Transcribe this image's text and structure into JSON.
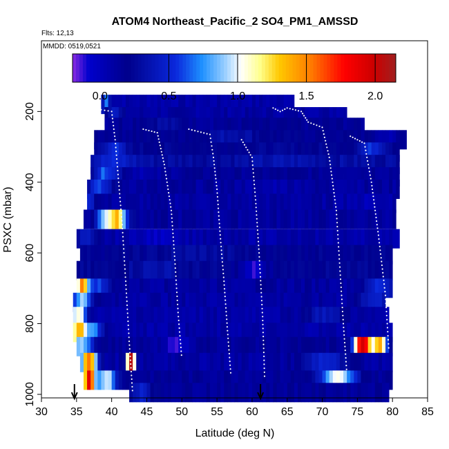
{
  "chart_data": {
    "type": "heatmap",
    "title": "ATOM4 Northeast_Pacific_2 SO4_PM1_AMSSD",
    "note_flights": "Flts: 12,13",
    "note_dates": "MMDD: 0519,0521",
    "xlabel": "Latitude (deg N)",
    "ylabel": "PSXC (mbar)",
    "xlim": [
      30,
      85
    ],
    "ylim": [
      1010,
      0
    ],
    "x_ticks": [
      "30",
      "35",
      "40",
      "45",
      "50",
      "55",
      "60",
      "65",
      "70",
      "75",
      "80",
      "85"
    ],
    "y_ticks": [
      "200",
      "400",
      "600",
      "800",
      "1000"
    ],
    "colorbar": {
      "range": [
        -0.2,
        2.15
      ],
      "tick_values": [
        0.0,
        0.5,
        1.0,
        1.5,
        2.0
      ],
      "tick_labels": [
        "0.0",
        "0.5",
        "1.0",
        "1.5",
        "2.0"
      ]
    },
    "arrows_at_latitude": [
      34.7,
      61.2
    ],
    "rows": [
      {
        "pressure": 180,
        "lat_start": 38.5,
        "lat_end": 66.0,
        "base": 0.08,
        "hot": [
          {
            "lat": 39.0,
            "value": 0.7,
            "width": 0.6
          }
        ]
      },
      {
        "pressure": 215,
        "lat_start": 39.0,
        "lat_end": 73.5,
        "base": 0.1,
        "hot": [
          {
            "lat": 40.0,
            "value": 0.45,
            "width": 1.2
          }
        ]
      },
      {
        "pressure": 245,
        "lat_start": 39.0,
        "lat_end": 76.0,
        "base": 0.15,
        "hot": [
          {
            "lat": 47.0,
            "value": 0.3,
            "width": 3
          }
        ]
      },
      {
        "pressure": 280,
        "lat_start": 37.5,
        "lat_end": 82.0,
        "base": 0.18,
        "hot": [
          {
            "lat": 57.0,
            "value": 0.35,
            "width": 4
          },
          {
            "lat": 79.0,
            "value": 0.05,
            "width": 2
          }
        ]
      },
      {
        "pressure": 315,
        "lat_start": 37.5,
        "lat_end": 81.0,
        "base": 0.22,
        "hot": [
          {
            "lat": 40.0,
            "value": 0.55,
            "width": 1.5
          },
          {
            "lat": 77.0,
            "value": 0.55,
            "width": 2
          }
        ]
      },
      {
        "pressure": 350,
        "lat_start": 37.0,
        "lat_end": 81.0,
        "base": 0.3,
        "hot": [
          {
            "lat": 40.0,
            "value": 0.5,
            "width": 3
          },
          {
            "lat": 65.0,
            "value": 0.35,
            "width": 5
          }
        ]
      },
      {
        "pressure": 385,
        "lat_start": 37.0,
        "lat_end": 81.0,
        "base": 0.15,
        "hot": [
          {
            "lat": 39.0,
            "value": 0.65,
            "width": 2
          },
          {
            "lat": 45.0,
            "value": 0.05,
            "width": 3
          }
        ]
      },
      {
        "pressure": 420,
        "lat_start": 36.5,
        "lat_end": 81.0,
        "base": 0.12,
        "hot": [
          {
            "lat": 38.0,
            "value": 0.55,
            "width": 2
          },
          {
            "lat": 62.0,
            "value": 0.05,
            "width": 3
          }
        ]
      },
      {
        "pressure": 460,
        "lat_start": 36.5,
        "lat_end": 80.5,
        "base": 0.1,
        "hot": [
          {
            "lat": 36.5,
            "value": 0.55,
            "width": 1
          },
          {
            "lat": 76.0,
            "value": 0.02,
            "width": 2
          }
        ]
      },
      {
        "pressure": 505,
        "lat_start": 36.0,
        "lat_end": 80.5,
        "base": 0.12,
        "hot": [
          {
            "lat": 40.5,
            "value": 1.35,
            "width": 1.5
          },
          {
            "lat": 38.5,
            "value": 0.7,
            "width": 1
          }
        ]
      },
      {
        "pressure": 560,
        "lat_start": 35.0,
        "lat_end": 81.0,
        "base": 0.08,
        "hot": [
          {
            "lat": 36.0,
            "value": 0.4,
            "width": 1.5
          },
          {
            "lat": 46.0,
            "value": -0.05,
            "width": 2
          }
        ]
      },
      {
        "pressure": 605,
        "lat_start": 35.5,
        "lat_end": 80.0,
        "base": 0.2,
        "hot": [
          {
            "lat": 52.0,
            "value": 0.3,
            "width": 6
          }
        ]
      },
      {
        "pressure": 650,
        "lat_start": 35.0,
        "lat_end": 80.0,
        "base": 0.22,
        "hot": [
          {
            "lat": 46.0,
            "value": 0.35,
            "width": 4
          },
          {
            "lat": 60.0,
            "value": -0.1,
            "width": 2
          }
        ]
      },
      {
        "pressure": 700,
        "lat_start": 35.0,
        "lat_end": 80.0,
        "base": 0.12,
        "hot": [
          {
            "lat": 35.5,
            "value": 1.4,
            "width": 0.8
          },
          {
            "lat": 37.5,
            "value": 0.6,
            "width": 2
          },
          {
            "lat": 78.0,
            "value": 0.55,
            "width": 2
          }
        ]
      },
      {
        "pressure": 740,
        "lat_start": 34.5,
        "lat_end": 79.0,
        "base": 0.1,
        "hot": [
          {
            "lat": 35.5,
            "value": 0.9,
            "width": 1.5
          },
          {
            "lat": 77.0,
            "value": 0.5,
            "width": 2
          }
        ]
      },
      {
        "pressure": 780,
        "lat_start": 34.5,
        "lat_end": 79.5,
        "base": 0.08,
        "hot": [
          {
            "lat": 35.0,
            "value": 1.1,
            "width": 1.2
          },
          {
            "lat": 70.0,
            "value": 0.4,
            "width": 3
          }
        ]
      },
      {
        "pressure": 825,
        "lat_start": 34.5,
        "lat_end": 80.0,
        "base": 0.08,
        "hot": [
          {
            "lat": 35.0,
            "value": 1.3,
            "width": 1.0
          },
          {
            "lat": 37.0,
            "value": 0.8,
            "width": 1.5
          }
        ]
      },
      {
        "pressure": 865,
        "lat_start": 35.0,
        "lat_end": 80.0,
        "base": 0.15,
        "hot": [
          {
            "lat": 35.5,
            "value": 0.9,
            "width": 1.5
          },
          {
            "lat": 49.0,
            "value": -0.1,
            "width": 2
          },
          {
            "lat": 75.5,
            "value": 2.0,
            "width": 1.2
          },
          {
            "lat": 78.0,
            "value": 1.4,
            "width": 1.0
          }
        ]
      },
      {
        "pressure": 910,
        "lat_start": 35.5,
        "lat_end": 80.0,
        "base": 0.1,
        "hot": [
          {
            "lat": 36.5,
            "value": 1.6,
            "width": 1.2
          },
          {
            "lat": 42.5,
            "value": 2.0,
            "width": 0.6
          },
          {
            "lat": 70.0,
            "value": 0.5,
            "width": 3
          }
        ]
      },
      {
        "pressure": 960,
        "lat_start": 36.0,
        "lat_end": 80.0,
        "base": 0.15,
        "hot": [
          {
            "lat": 36.5,
            "value": 1.9,
            "width": 0.8
          },
          {
            "lat": 39.0,
            "value": 1.0,
            "width": 1.5
          },
          {
            "lat": 72.0,
            "value": 1.0,
            "width": 2.5
          }
        ]
      },
      {
        "pressure": 995,
        "lat_start": 42.5,
        "lat_end": 79.5,
        "base": 0.15,
        "hot": [
          {
            "lat": 44.0,
            "value": 0.5,
            "width": 1.5
          }
        ]
      }
    ],
    "profile_tracks": [
      {
        "points": [
          [
            38.5,
            195
          ],
          [
            40.0,
            200
          ],
          [
            40.5,
            280
          ],
          [
            41.0,
            400
          ],
          [
            41.5,
            520
          ],
          [
            42.0,
            680
          ],
          [
            42.5,
            850
          ],
          [
            43.0,
            1000
          ]
        ]
      },
      {
        "points": [
          [
            44.5,
            250
          ],
          [
            46.5,
            260
          ],
          [
            47.5,
            350
          ],
          [
            48.5,
            480
          ],
          [
            49.0,
            620
          ],
          [
            49.5,
            780
          ],
          [
            50.0,
            900
          ]
        ]
      },
      {
        "points": [
          [
            51.0,
            250
          ],
          [
            54.0,
            265
          ],
          [
            54.5,
            330
          ],
          [
            55.0,
            420
          ],
          [
            55.5,
            560
          ],
          [
            56.0,
            680
          ],
          [
            56.5,
            820
          ],
          [
            57.0,
            950
          ]
        ]
      },
      {
        "points": [
          [
            58.5,
            280
          ],
          [
            60.0,
            330
          ],
          [
            60.5,
            450
          ],
          [
            61.0,
            600
          ],
          [
            61.5,
            780
          ],
          [
            61.8,
            960
          ]
        ]
      },
      {
        "points": [
          [
            63.0,
            190
          ],
          [
            64.0,
            200
          ],
          [
            65.0,
            190
          ],
          [
            67.0,
            200
          ],
          [
            68.0,
            230
          ],
          [
            70.0,
            245
          ],
          [
            71.0,
            330
          ],
          [
            72.0,
            480
          ],
          [
            72.5,
            640
          ],
          [
            73.0,
            800
          ],
          [
            73.5,
            940
          ]
        ]
      },
      {
        "points": [
          [
            74.0,
            270
          ],
          [
            76.0,
            290
          ],
          [
            77.0,
            400
          ],
          [
            78.0,
            550
          ],
          [
            79.0,
            720
          ],
          [
            79.5,
            880
          ]
        ]
      }
    ]
  }
}
